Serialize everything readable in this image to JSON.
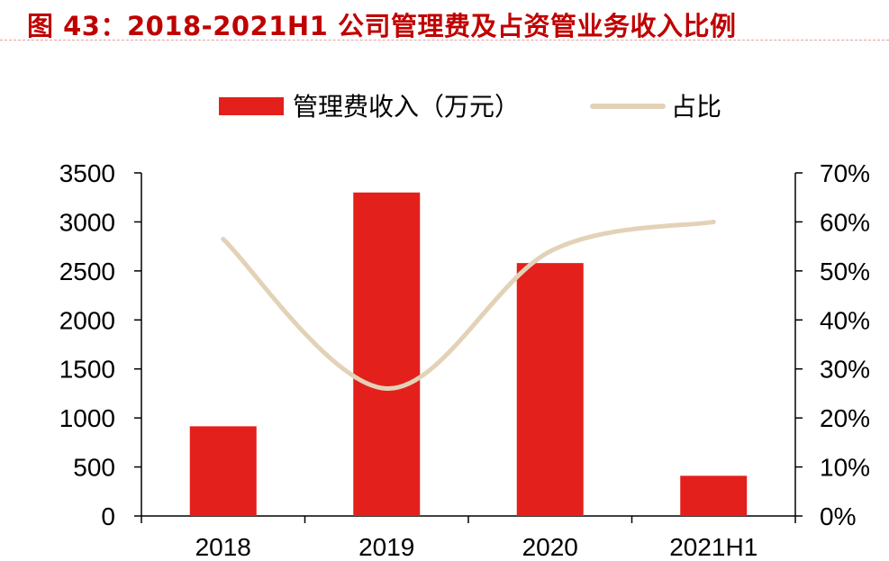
{
  "title": "图 43：2018-2021H1 公司管理费及占资管业务收入比例",
  "chart_data": {
    "type": "bar",
    "title": "图 43：2018-2021H1 公司管理费及占资管业务收入比例",
    "categories": [
      "2018",
      "2019",
      "2020",
      "2021H1"
    ],
    "series": [
      {
        "name": "管理费收入（万元）",
        "type": "bar",
        "axis": "left",
        "color": "#e3201b",
        "values": [
          915,
          3300,
          2580,
          410
        ]
      },
      {
        "name": "占比",
        "type": "line",
        "axis": "right",
        "color": "#e3d2b8",
        "values": [
          56.5,
          26,
          54,
          60
        ]
      }
    ],
    "y_left": {
      "min": 0,
      "max": 3500,
      "ticks": [
        "0",
        "500",
        "1000",
        "1500",
        "2000",
        "2500",
        "3000",
        "3500"
      ]
    },
    "y_right": {
      "min": 0,
      "max": 70,
      "ticks": [
        "0%",
        "10%",
        "20%",
        "30%",
        "40%",
        "50%",
        "60%",
        "70%"
      ]
    },
    "legend_position": "top-center",
    "grid": false
  }
}
